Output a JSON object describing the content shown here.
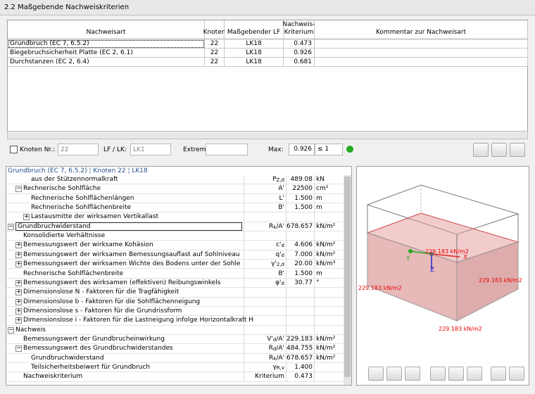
{
  "header": {
    "title": "2.2 Maßgebende Nachweiskriterien"
  },
  "table": {
    "columns": [
      "Nachweisart",
      "Knoten",
      "Maßgebender LF",
      "Nachweis-Kriterium",
      "Kommentar zur Nachweisart"
    ],
    "rows": [
      [
        "Grundbruch (EC 7, 6.5.2)",
        "22",
        "LK18",
        "0.473"
      ],
      [
        "Biegebruchsicherheit Platte (EC 2, 6.1)",
        "22",
        "LK18",
        "0.926"
      ],
      [
        "Durchstanzen (EC 2, 6.4)",
        "22",
        "LK18",
        "0.681"
      ]
    ]
  },
  "filter": {
    "node_label": "Knoten Nr.:",
    "node_value": "22",
    "lf_label": "LF / LK:",
    "lf_value": "LK1",
    "extrem_label": "Extrem:",
    "max_label": "Max:",
    "max_value": "0.926",
    "limit": "≤ 1"
  },
  "details": {
    "title": "Grundbruch (EC 7, 6.5.2) ¦ Knoten 22 ¦ LK18",
    "rows": [
      {
        "label": "aus der Stützennormalkraft",
        "level": 2,
        "symbol": {
          "main": "P",
          "sub": "Z,d"
        },
        "value": "489.08",
        "unit": "kN"
      },
      {
        "label": "Rechnerische Sohlfläche",
        "level": 1,
        "expander": "expanded",
        "symbol": {
          "main": "A'"
        },
        "value": "22500",
        "unit": "cm²"
      },
      {
        "label": "Rechnerische Sohlflächenlängen",
        "level": 2,
        "symbol": {
          "main": "L'"
        },
        "value": "1.500",
        "unit": "m"
      },
      {
        "label": "Rechnerische Sohlflächenbreite",
        "level": 2,
        "symbol": {
          "main": "B'"
        },
        "value": "1.500",
        "unit": "m"
      },
      {
        "label": "Lastausmitte der wirksamen Vertikallast",
        "level": 2,
        "expander": "collapsed"
      },
      {
        "label": "Grundbruchwiderstand",
        "level": 0,
        "expander": "expanded",
        "selected": true,
        "symbol": {
          "main": "R",
          "sub": "k",
          "post": "/A'"
        },
        "value": "678.657",
        "unit": "kN/m²"
      },
      {
        "label": "Konsolidierte Verhältnisse",
        "level": 1
      },
      {
        "label": "Bemessungswert der wirksame Kohäsion",
        "level": 1,
        "expander": "collapsed",
        "symbol": {
          "main": "c'",
          "sub": "d"
        },
        "value": "4.606",
        "unit": "kN/m²"
      },
      {
        "label": "Bemessungswert der wirksamen Bemessungsauflast auf Sohlniveau",
        "level": 1,
        "expander": "collapsed",
        "symbol": {
          "main": "q'",
          "sub": "d"
        },
        "value": "7.000",
        "unit": "kN/m²"
      },
      {
        "label": "Bemessungswert der wirksamen Wichte des Bodens unter der Sohle",
        "level": 1,
        "expander": "collapsed",
        "symbol": {
          "main": "γ'",
          "sub": "2,d"
        },
        "value": "20.00",
        "unit": "kN/m³"
      },
      {
        "label": "Rechnerische Sohlflächenbreite",
        "level": 1,
        "symbol": {
          "main": "B'"
        },
        "value": "1.500",
        "unit": "m"
      },
      {
        "label": "Bemessungswert des wirksamen (effektiven) Reibungswinkels",
        "level": 1,
        "expander": "collapsed",
        "symbol": {
          "main": "φ'",
          "sub": "d"
        },
        "value": "30.77",
        "unit": "°"
      },
      {
        "label": "Dimensionslose N - Faktoren für die Tragfähigkeit",
        "level": 1,
        "expander": "collapsed"
      },
      {
        "label": "Dimensionslose b - Faktoren für die Sohlflächenneigung",
        "level": 1,
        "expander": "collapsed"
      },
      {
        "label": "Dimensionslose s - Faktoren für die Grundrissform",
        "level": 1,
        "expander": "collapsed"
      },
      {
        "label": "Dimensionslose i - Faktoren für die Lastneigung infolge Horizontalkraft H",
        "level": 1,
        "expander": "collapsed"
      },
      {
        "label": "Nachweis",
        "level": 0,
        "expander": "expanded"
      },
      {
        "label": "Bemessungswert der Grundbrucheinwirkung",
        "level": 1,
        "symbol": {
          "main": "V'",
          "sub": "d",
          "post": "/A'"
        },
        "value": "229.183",
        "unit": "kN/m²"
      },
      {
        "label": "Bemessungswert des Grundbruchwiderstandes",
        "level": 1,
        "expander": "expanded",
        "symbol": {
          "main": "R",
          "sub": "d",
          "post": "/A'"
        },
        "value": "484.755",
        "unit": "kN/m²"
      },
      {
        "label": "Grundbruchwiderstand",
        "level": 2,
        "symbol": {
          "main": "R",
          "sub": "k",
          "post": "/A'"
        },
        "value": "678.657",
        "unit": "kN/m²"
      },
      {
        "label": "Teilsicherheitsbeiwert für Grundbruch",
        "level": 2,
        "symbol": {
          "main": "γ",
          "sub": "R,v"
        },
        "value": "1.400"
      },
      {
        "label": "Nachweiskriterium",
        "level": 1,
        "symbol": {
          "main": "Kriterium"
        },
        "value": "0.473"
      }
    ]
  },
  "view": {
    "labels": [
      "229.183 kN/m2",
      "229.183 kN/m2",
      "229.183 kN/m2",
      "229.183 kN/m2"
    ],
    "axes": [
      "X",
      "Y",
      "Z"
    ]
  }
}
